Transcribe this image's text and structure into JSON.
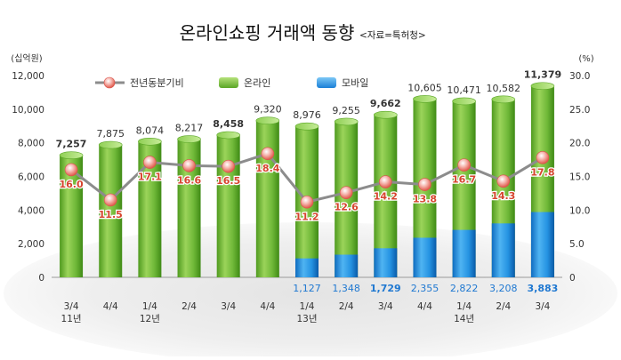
{
  "chart_data": {
    "type": "bar",
    "title": "온라인쇼핑 거래액 동향",
    "subtitle": "<자료=특허청>",
    "y_left_label": "(십억원)",
    "y_right_label": "(%)",
    "ylim_left": [
      0,
      12000
    ],
    "ylim_right": [
      0,
      30
    ],
    "y_left_ticks": [
      "0",
      "2,000",
      "4,000",
      "6,000",
      "8,000",
      "10,000",
      "12,000"
    ],
    "y_right_ticks": [
      "0",
      "5.0",
      "10.0",
      "15.0",
      "20.0",
      "25.0",
      "30.0"
    ],
    "legend_position": "top",
    "categories": [
      "3/4",
      "4/4",
      "1/4",
      "2/4",
      "3/4",
      "4/4",
      "1/4",
      "2/4",
      "3/4",
      "4/4",
      "1/4",
      "2/4",
      "3/4"
    ],
    "year_labels": [
      "11년",
      "",
      "12년",
      "",
      "",
      "",
      "13년",
      "",
      "",
      "",
      "14년",
      "",
      ""
    ],
    "series": [
      {
        "name": "온라인",
        "kind": "bar",
        "axis": "left",
        "color": "#7cc242",
        "values": [
          7257,
          7875,
          8074,
          8217,
          8458,
          9320,
          8976,
          9255,
          9662,
          10605,
          10471,
          10582,
          11379
        ],
        "labels": [
          "7,257",
          "7,875",
          "8,074",
          "8,217",
          "8,458",
          "9,320",
          "8,976",
          "9,255",
          "9,662",
          "10,605",
          "10,471",
          "10,582",
          "11,379"
        ],
        "bold": [
          true,
          false,
          false,
          false,
          true,
          false,
          false,
          false,
          true,
          false,
          false,
          false,
          true
        ]
      },
      {
        "name": "모바일",
        "kind": "bar",
        "axis": "left",
        "color": "#1f8fe0",
        "values": [
          null,
          null,
          null,
          null,
          null,
          null,
          1127,
          1348,
          1729,
          2355,
          2822,
          3208,
          3883
        ],
        "labels": [
          "",
          "",
          "",
          "",
          "",
          "",
          "1,127",
          "1,348",
          "1,729",
          "2,355",
          "2,822",
          "3,208",
          "3,883"
        ],
        "bold": [
          false,
          false,
          false,
          false,
          false,
          false,
          false,
          false,
          true,
          false,
          false,
          false,
          true
        ]
      },
      {
        "name": "전년동분기비",
        "kind": "line",
        "axis": "right",
        "color": "#8c8c8c",
        "values": [
          16.0,
          11.5,
          17.1,
          16.6,
          16.5,
          18.4,
          11.2,
          12.6,
          14.2,
          13.8,
          16.7,
          14.3,
          17.8
        ],
        "labels": [
          "16.0",
          "11.5",
          "17.1",
          "16.6",
          "16.5",
          "18.4",
          "11.2",
          "12.6",
          "14.2",
          "13.8",
          "16.7",
          "14.3",
          "17.8"
        ]
      }
    ],
    "colors": {
      "line_label": "#d6452e",
      "mobile_label": "#1f78d1",
      "bar_label": "#333333",
      "axis_text": "#333333"
    }
  }
}
